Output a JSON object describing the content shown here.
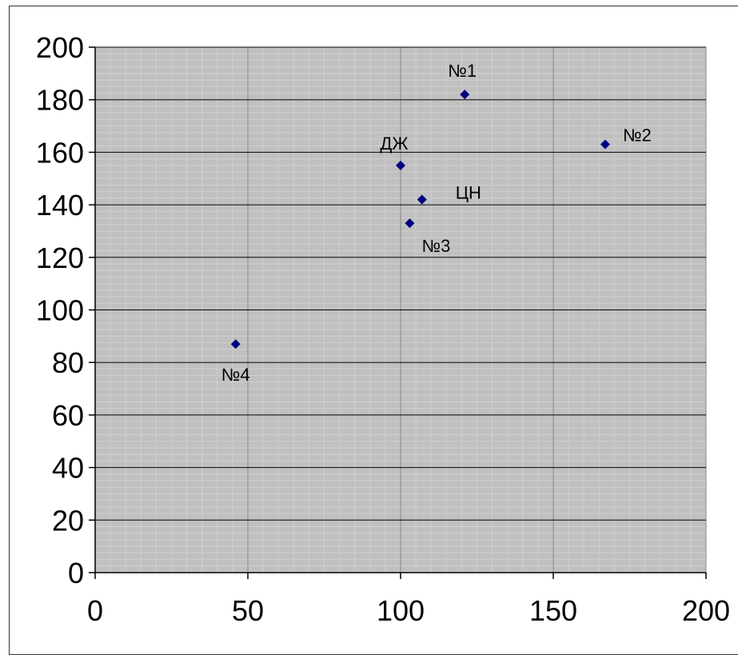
{
  "chart_data": {
    "type": "scatter",
    "title": "",
    "xlabel": "",
    "ylabel": "",
    "xlim": [
      0,
      200
    ],
    "ylim": [
      0,
      200
    ],
    "x_ticks": [
      "0",
      "50",
      "100",
      "150",
      "200"
    ],
    "y_ticks": [
      "0",
      "20",
      "40",
      "60",
      "80",
      "100",
      "120",
      "140",
      "160",
      "180",
      "200"
    ],
    "grid": true,
    "legend": "none",
    "colors": {
      "plot_background": "#c0c0c0",
      "minor_grid": "#cfcfcf",
      "major_grid_x": "#888888",
      "major_grid_y": "#000000",
      "marker": "#000080"
    },
    "marker_shape": "diamond",
    "series": [
      {
        "points": [
          {
            "label": "№1",
            "x": 121,
            "y": 182
          },
          {
            "label": "№2",
            "x": 167,
            "y": 163
          },
          {
            "label": "ДЖ",
            "x": 100,
            "y": 155
          },
          {
            "label": "ЦН",
            "x": 107,
            "y": 142
          },
          {
            "label": "№3",
            "x": 103,
            "y": 133
          },
          {
            "label": "№4",
            "x": 46,
            "y": 87
          }
        ]
      }
    ]
  }
}
